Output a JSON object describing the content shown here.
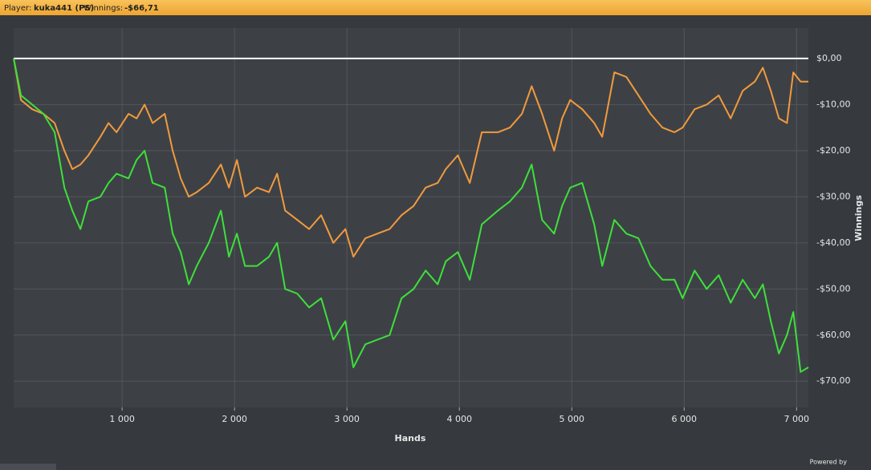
{
  "header": {
    "player_label": "Player:",
    "player": "kuka441 (PS)",
    "winnings_label": "Winnings:",
    "winnings": "-$66,71"
  },
  "footer": {
    "powered_by": "Powered by"
  },
  "chart_data": {
    "type": "line",
    "x_label": "Hands",
    "y_label": "Winnings",
    "xlim": [
      35,
      7105
    ],
    "xticks": [
      {
        "value": 1000,
        "label": "1 000"
      },
      {
        "value": 2000,
        "label": "2 000"
      },
      {
        "value": 3000,
        "label": "3 000"
      },
      {
        "value": 4000,
        "label": "4 000"
      },
      {
        "value": 5000,
        "label": "5 000"
      },
      {
        "value": 6000,
        "label": "6 000"
      },
      {
        "value": 7000,
        "label": "7 000"
      }
    ],
    "ylim": [
      -75.7,
      6.6
    ],
    "yticks": [
      {
        "value": 0,
        "label": "$0,00"
      },
      {
        "value": -10,
        "label": "-$10,00"
      },
      {
        "value": -20,
        "label": "-$20,00"
      },
      {
        "value": -30,
        "label": "-$30,00"
      },
      {
        "value": -40,
        "label": "-$40,00"
      },
      {
        "value": -50,
        "label": "-$50,00"
      },
      {
        "value": -60,
        "label": "-$60,00"
      },
      {
        "value": -70,
        "label": "-$70,00"
      }
    ],
    "grid": true,
    "y_axis_side": "right",
    "x": [
      36,
      100,
      200,
      300,
      400,
      486,
      557,
      629,
      700,
      807,
      879,
      950,
      1057,
      1129,
      1200,
      1271,
      1379,
      1450,
      1521,
      1593,
      1664,
      1771,
      1879,
      1950,
      2021,
      2093,
      2200,
      2307,
      2379,
      2450,
      2557,
      2664,
      2771,
      2879,
      2986,
      3057,
      3164,
      3271,
      3379,
      3486,
      3593,
      3700,
      3807,
      3879,
      3986,
      4093,
      4200,
      4343,
      4450,
      4557,
      4643,
      4736,
      4843,
      4914,
      4986,
      5093,
      5200,
      5271,
      5379,
      5486,
      5593,
      5700,
      5807,
      5914,
      5986,
      6093,
      6200,
      6307,
      6414,
      6521,
      6629,
      6700,
      6771,
      6843,
      6914,
      6971,
      7036,
      7105
    ],
    "series": [
      {
        "color": "#f29a3c",
        "values": [
          0,
          -9,
          -11,
          -12,
          -14,
          -20,
          -24,
          -23,
          -21,
          -17,
          -14,
          -16,
          -12,
          -13,
          -10,
          -14,
          -12,
          -20,
          -26,
          -30,
          -29,
          -27,
          -23,
          -28,
          -22,
          -30,
          -28,
          -29,
          -25,
          -33,
          -35,
          -37,
          -34,
          -40,
          -37,
          -43,
          -39,
          -38,
          -37,
          -34,
          -32,
          -28,
          -27,
          -24,
          -21,
          -27,
          -16,
          -16,
          -15,
          -12,
          -6,
          -12,
          -20,
          -13,
          -9,
          -11,
          -14,
          -17,
          -3,
          -4,
          -8,
          -12,
          -15,
          -16,
          -15,
          -11,
          -10,
          -8,
          -13,
          -7,
          -5,
          -2,
          -7,
          -13,
          -14,
          -3,
          -5,
          -5
        ]
      },
      {
        "color": "#3ee03a",
        "values": [
          0,
          -8,
          -10,
          -12,
          -16,
          -28,
          -33,
          -37,
          -31,
          -30,
          -27,
          -25,
          -26,
          -22,
          -20,
          -27,
          -28,
          -38,
          -42,
          -49,
          -45,
          -40,
          -33,
          -43,
          -38,
          -45,
          -45,
          -43,
          -40,
          -50,
          -51,
          -54,
          -52,
          -61,
          -57,
          -67,
          -62,
          -61,
          -60,
          -52,
          -50,
          -46,
          -49,
          -44,
          -42,
          -48,
          -36,
          -33,
          -31,
          -28,
          -23,
          -35,
          -38,
          -32,
          -28,
          -27,
          -36,
          -45,
          -35,
          -38,
          -39,
          -45,
          -48,
          -48,
          -52,
          -46,
          -50,
          -47,
          -53,
          -48,
          -52,
          -49,
          -57,
          -64,
          -60,
          -55,
          -68,
          -67
        ]
      }
    ]
  }
}
